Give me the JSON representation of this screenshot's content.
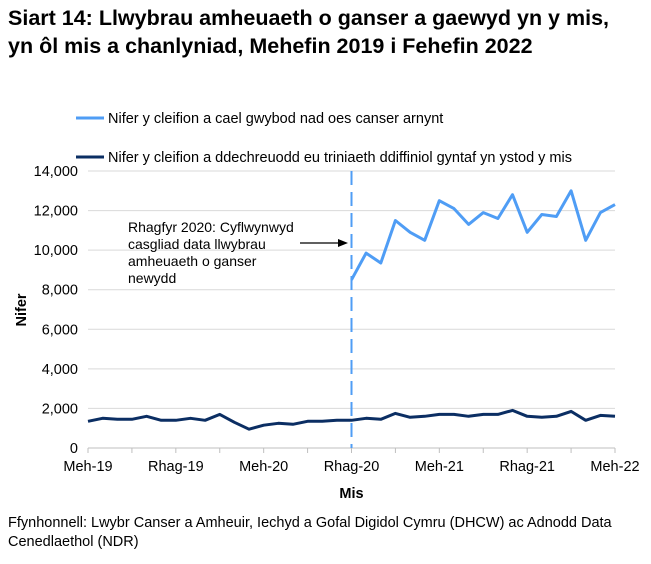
{
  "title": "Siart 14: Llwybrau amheuaeth o ganser a gaewyd yn y mis, yn ôl mis a chanlyniad, Mehefin 2019 i Fehefin 2022",
  "source": "Ffynhonnell: Lwybr Canser a Amheuir, Iechyd a Gofal Digidol Cymru (DHCW) ac Adnodd Data Cenedlaethol (NDR)",
  "chart_data": {
    "type": "line",
    "xlabel": "Mis",
    "ylabel": "Nifer",
    "ylim": [
      0,
      14000
    ],
    "yticks": [
      "0",
      "2,000",
      "4,000",
      "6,000",
      "8,000",
      "10,000",
      "12,000",
      "14,000"
    ],
    "xtick_labels": [
      "Meh-19",
      "Rhag-19",
      "Meh-20",
      "Rhag-20",
      "Meh-21",
      "Rhag-21",
      "Meh-22"
    ],
    "grid": true,
    "legend": "top",
    "x": [
      "Meh-19",
      "Gor-19",
      "Aws-19",
      "Med-19",
      "Hyd-19",
      "Tach-19",
      "Rhag-19",
      "Ion-20",
      "Chwe-20",
      "Maw-20",
      "Ebr-20",
      "Mai-20",
      "Meh-20",
      "Gor-20",
      "Aws-20",
      "Med-20",
      "Hyd-20",
      "Tach-20",
      "Rhag-20",
      "Ion-21",
      "Chwe-21",
      "Maw-21",
      "Ebr-21",
      "Mai-21",
      "Meh-21",
      "Gor-21",
      "Aws-21",
      "Med-21",
      "Hyd-21",
      "Tach-21",
      "Rhag-21",
      "Ion-22",
      "Chwe-22",
      "Maw-22",
      "Ebr-22",
      "Mai-22",
      "Meh-22"
    ],
    "series": [
      {
        "name": "Nifer y cleifion a cael gwybod nad oes canser arnynt",
        "color": "#4f9df5",
        "values": [
          null,
          null,
          null,
          null,
          null,
          null,
          null,
          null,
          null,
          null,
          null,
          null,
          null,
          null,
          null,
          null,
          null,
          null,
          8500,
          9850,
          9350,
          11500,
          10900,
          10500,
          12500,
          12100,
          11300,
          11900,
          11600,
          12800,
          10900,
          11800,
          11700,
          13000,
          10500,
          11900,
          12300
        ]
      },
      {
        "name": "Nifer y cleifion a ddechreuodd eu triniaeth ddiffiniol gyntaf yn ystod y mis",
        "color": "#0b2e63",
        "values": [
          1350,
          1500,
          1450,
          1450,
          1600,
          1400,
          1400,
          1500,
          1400,
          1700,
          1300,
          950,
          1150,
          1250,
          1200,
          1350,
          1350,
          1400,
          1400,
          1500,
          1450,
          1750,
          1550,
          1600,
          1700,
          1700,
          1600,
          1700,
          1700,
          1900,
          1600,
          1550,
          1600,
          1850,
          1400,
          1650,
          1600
        ]
      }
    ],
    "vertical_marker": {
      "x": "Rhag-20",
      "color": "#4f9df5",
      "style": "dashed"
    },
    "annotation": "Rhagfyr 2020: Cyflwynwyd casgliad data llwybrau amheuaeth o ganser newydd",
    "annotation_lines": [
      "Rhagfyr 2020: Cyflwynwyd",
      "casgliad data llwybrau",
      "amheuaeth o ganser",
      "newydd"
    ]
  }
}
